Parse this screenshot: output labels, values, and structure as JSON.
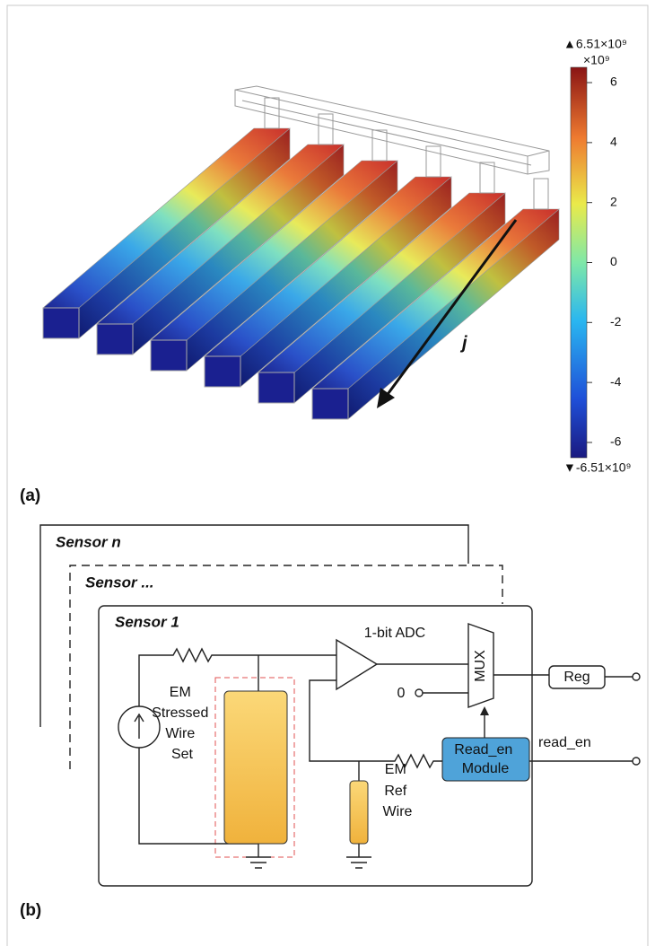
{
  "figure_a": {
    "label": "(a)",
    "current_label": "j",
    "colorbar": {
      "max_label": "▲6.51×10⁹",
      "multiplier": "×10⁹",
      "min_label": "▼-6.51×10⁹",
      "range": [
        -6.51,
        6.51
      ],
      "ticks": [
        6,
        4,
        2,
        0,
        -2,
        -4,
        -6
      ]
    }
  },
  "figure_b": {
    "label": "(b)",
    "sensors": [
      "Sensor n",
      "Sensor ...",
      "Sensor 1"
    ],
    "adc_label": "1-bit ADC",
    "mux_label": "MUX",
    "zero_input": "0",
    "register": "Reg",
    "read_en_module": [
      "Read_en",
      "Module"
    ],
    "read_en_output": "read_en",
    "stressed_wire": [
      "EM",
      "Stressed",
      "Wire",
      "Set"
    ],
    "ref_wire": [
      "EM",
      "Ref",
      "Wire"
    ]
  }
}
